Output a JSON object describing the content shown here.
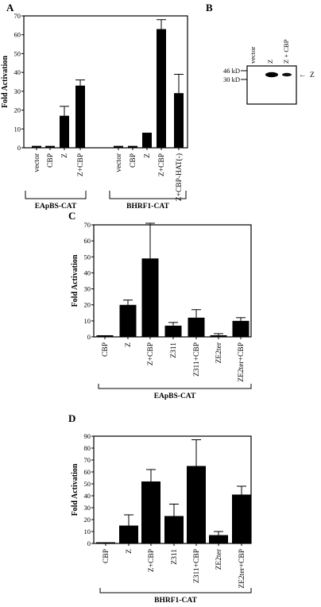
{
  "panels": {
    "a": "A",
    "b": "B",
    "c": "C",
    "d": "D"
  },
  "blot": {
    "lanes": [
      "vector",
      "Z",
      "Z + CBP"
    ],
    "markers": [
      "46 kD",
      "30 kD"
    ],
    "band_label": "Z",
    "arrow": "←"
  },
  "chart_data": [
    {
      "panel": "A",
      "type": "bar",
      "ylabel": "Fold Activation",
      "ylim": [
        0,
        70
      ],
      "yticks": [
        0,
        10,
        20,
        30,
        40,
        50,
        60,
        70
      ],
      "groups": [
        {
          "label": "EApBS-CAT",
          "categories": [
            "vector",
            "CBP",
            "Z",
            "Z+CBP"
          ],
          "values": [
            1,
            1,
            17,
            33
          ],
          "errors": [
            0,
            0,
            5,
            3
          ]
        },
        {
          "label": "BHRF1-CAT",
          "categories": [
            "vector",
            "CBP",
            "Z",
            "Z+CBP",
            "Z+CBP-HAT(-)"
          ],
          "values": [
            1,
            1,
            8,
            63,
            29
          ],
          "errors": [
            0,
            0,
            0,
            5,
            10
          ]
        }
      ]
    },
    {
      "panel": "C",
      "type": "bar",
      "ylabel": "Fold Activation",
      "ylim": [
        0,
        70
      ],
      "yticks": [
        0,
        10,
        20,
        30,
        40,
        50,
        60,
        70
      ],
      "group_label": "EApBS-CAT",
      "categories": [
        "CBP",
        "Z",
        "Z+CBP",
        "Z311",
        "Z311+CBP",
        "ZE2ter",
        "ZE2ter+CBP"
      ],
      "values": [
        1,
        20,
        49,
        7,
        12,
        1,
        10
      ],
      "errors": [
        0,
        3,
        22,
        2,
        5,
        1,
        2
      ]
    },
    {
      "panel": "D",
      "type": "bar",
      "ylabel": "Fold Activation",
      "ylim": [
        0,
        90
      ],
      "yticks": [
        0,
        10,
        20,
        30,
        40,
        50,
        60,
        70,
        80,
        90
      ],
      "group_label": "BHRF1-CAT",
      "categories": [
        "CBP",
        "Z",
        "Z+CBP",
        "Z311",
        "Z311+CBP",
        "ZE2ter",
        "ZE2ter+CBP"
      ],
      "values": [
        1,
        15,
        52,
        23,
        65,
        7,
        41
      ],
      "errors": [
        0,
        9,
        10,
        10,
        22,
        3,
        7
      ]
    }
  ]
}
